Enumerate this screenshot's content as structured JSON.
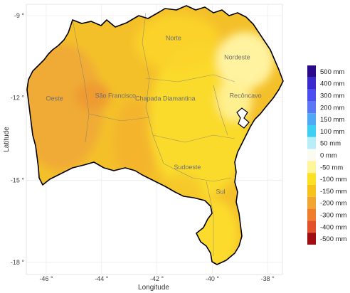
{
  "axes": {
    "xlabel": "Longitude",
    "ylabel": "Latitude",
    "x_ticks": [
      {
        "value": -46,
        "label": "-46 °"
      },
      {
        "value": -44,
        "label": "-44 °"
      },
      {
        "value": -42,
        "label": "-42 °"
      },
      {
        "value": -40,
        "label": "-40 °"
      },
      {
        "value": -38,
        "label": "-38 °"
      }
    ],
    "y_ticks": [
      {
        "value": -9,
        "label": "-9 °"
      },
      {
        "value": -12,
        "label": "-12 °"
      },
      {
        "value": -15,
        "label": "-15 °"
      },
      {
        "value": -18,
        "label": "-18 °"
      }
    ],
    "xlim": [
      -46.7,
      -37.4
    ],
    "ylim": [
      -18.4,
      -8.6
    ]
  },
  "regions": [
    {
      "name": "Norte",
      "lon": -41.4,
      "lat": -9.9
    },
    {
      "name": "Nordeste",
      "lon": -39.1,
      "lat": -10.6
    },
    {
      "name": "Oeste",
      "lon": -45.7,
      "lat": -12.1
    },
    {
      "name": "São Francisco",
      "lon": -43.5,
      "lat": -12.0
    },
    {
      "name": "Chapada Diamantina",
      "lon": -41.7,
      "lat": -12.1
    },
    {
      "name": "Recôncavo",
      "lon": -38.8,
      "lat": -12.0
    },
    {
      "name": "Sudoeste",
      "lon": -40.9,
      "lat": -14.6
    },
    {
      "name": "Sul",
      "lon": -39.7,
      "lat": -15.5
    }
  ],
  "legend": [
    {
      "label": "500 mm",
      "color": "#2a0a8c"
    },
    {
      "label": "400 mm",
      "color": "#3a2bd0"
    },
    {
      "label": "300 mm",
      "color": "#4a4ef0"
    },
    {
      "label": "200 mm",
      "color": "#5a78f5"
    },
    {
      "label": "150 mm",
      "color": "#4fa9f4"
    },
    {
      "label": "100 mm",
      "color": "#3ed0f2"
    },
    {
      "label": "50 mm",
      "color": "#b8eef8"
    },
    {
      "label": "0 mm",
      "color": "#fbfbf2"
    },
    {
      "label": "-50 mm",
      "color": "#fff59a"
    },
    {
      "label": "-100 mm",
      "color": "#fbe024"
    },
    {
      "label": "-150 mm",
      "color": "#f6c31c"
    },
    {
      "label": "-200 mm",
      "color": "#f3a531"
    },
    {
      "label": "-300 mm",
      "color": "#ef7d2c"
    },
    {
      "label": "-400 mm",
      "color": "#e3512b"
    },
    {
      "label": "-500 mm",
      "color": "#a10e12"
    }
  ],
  "colors": {
    "base_fill": "#f4c02a",
    "orange_west": "#f0a837",
    "yellow_east": "#fbdd2a",
    "pale_northeast": "#fff6a8",
    "outline": "#000000",
    "bay": "#ffffff"
  }
}
